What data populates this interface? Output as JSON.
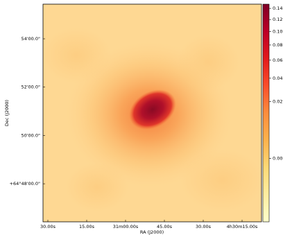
{
  "chart_data": {
    "type": "image",
    "xlabel": "RA (J2000)",
    "ylabel": "Dec (J2000)",
    "x_tick_labels": [
      "30.00s",
      "15.00s",
      "31m00.00s",
      "45.00s",
      "30.00s",
      "4h30m15.00s"
    ],
    "y_tick_labels": [
      "54'00.0\"",
      "52'00.0\"",
      "50'00.0\"",
      "+64°48'00.0\""
    ],
    "colorbar": {
      "scale": "sqrt",
      "lim": [
        -0.025,
        0.148
      ],
      "ticks": [
        0.14,
        0.12,
        {
          "value": 0.1,
          "label": "0.10"
        },
        0.08,
        0.06,
        0.04,
        0.02,
        {
          "value": 0,
          "label": "0.00"
        }
      ],
      "colors": [
        "#ffffcc",
        "#ffeda0",
        "#fed976",
        "#feb24c",
        "#fd8d3c",
        "#fc4e2a",
        "#e31a1c",
        "#bd0026",
        "#800026"
      ]
    }
  }
}
